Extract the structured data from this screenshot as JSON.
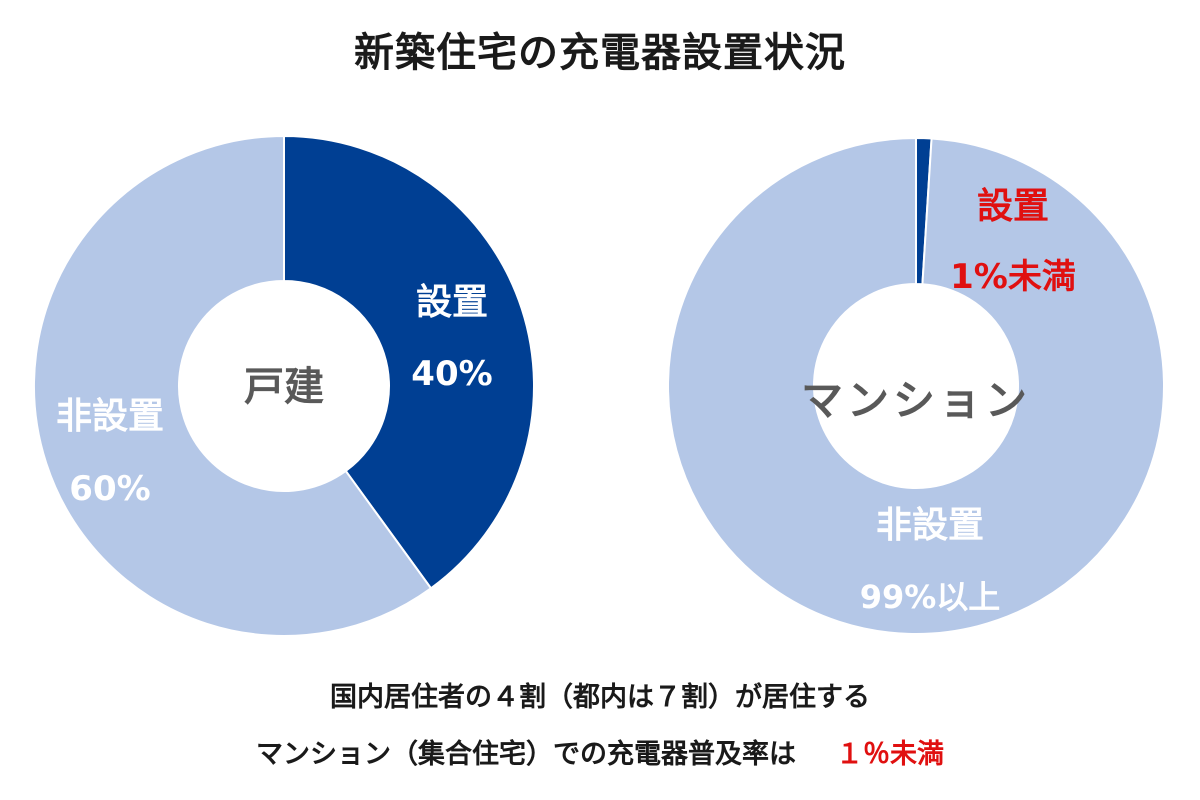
{
  "title": "新築住宅の充電器設置状況",
  "colors": {
    "installed": "#003f93",
    "not_installed": "#b4c7e7",
    "accent_red": "#e01010",
    "label_white": "#ffffff",
    "center_text": "#595959"
  },
  "chart_data": [
    {
      "type": "pie",
      "center_label": "戸建",
      "slices": [
        {
          "name": "設置",
          "value": 40,
          "value_label": "40%"
        },
        {
          "name": "非設置",
          "value": 60,
          "value_label": "60%"
        }
      ]
    },
    {
      "type": "pie",
      "center_label": "マンション",
      "slices": [
        {
          "name": "設置",
          "value": 1,
          "value_label": "1%未満"
        },
        {
          "name": "非設置",
          "value": 99,
          "value_label": "99%以上"
        }
      ]
    }
  ],
  "footnote": {
    "line1": "国内居住者の４割（都内は７割）が居住する",
    "line2": "マンション（集合住宅）での充電器普及率は",
    "line2_highlight": "１％未満"
  }
}
